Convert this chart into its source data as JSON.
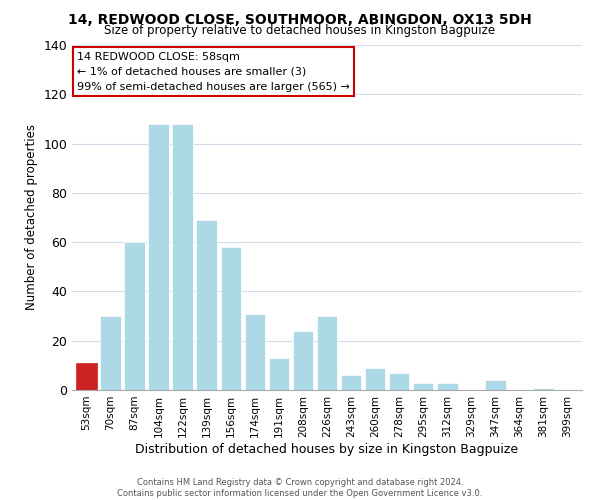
{
  "title": "14, REDWOOD CLOSE, SOUTHMOOR, ABINGDON, OX13 5DH",
  "subtitle": "Size of property relative to detached houses in Kingston Bagpuize",
  "xlabel": "Distribution of detached houses by size in Kingston Bagpuize",
  "ylabel": "Number of detached properties",
  "bar_labels": [
    "53sqm",
    "70sqm",
    "87sqm",
    "104sqm",
    "122sqm",
    "139sqm",
    "156sqm",
    "174sqm",
    "191sqm",
    "208sqm",
    "226sqm",
    "243sqm",
    "260sqm",
    "278sqm",
    "295sqm",
    "312sqm",
    "329sqm",
    "347sqm",
    "364sqm",
    "381sqm",
    "399sqm"
  ],
  "bar_values": [
    11,
    30,
    60,
    108,
    108,
    69,
    58,
    31,
    13,
    24,
    30,
    6,
    9,
    7,
    3,
    3,
    0,
    4,
    0,
    1,
    0
  ],
  "bar_color": "#add8e6",
  "highlight_bar_index": 0,
  "highlight_color": "#cc2222",
  "ylim": [
    0,
    140
  ],
  "yticks": [
    0,
    20,
    40,
    60,
    80,
    100,
    120,
    140
  ],
  "annotation_title": "14 REDWOOD CLOSE: 58sqm",
  "annotation_line1": "← 1% of detached houses are smaller (3)",
  "annotation_line2": "99% of semi-detached houses are larger (565) →",
  "annotation_box_color": "#ffffff",
  "annotation_box_edge": "#cc0000",
  "footer1": "Contains HM Land Registry data © Crown copyright and database right 2024.",
  "footer2": "Contains public sector information licensed under the Open Government Licence v3.0.",
  "background_color": "#ffffff",
  "grid_color": "#d0dde8"
}
